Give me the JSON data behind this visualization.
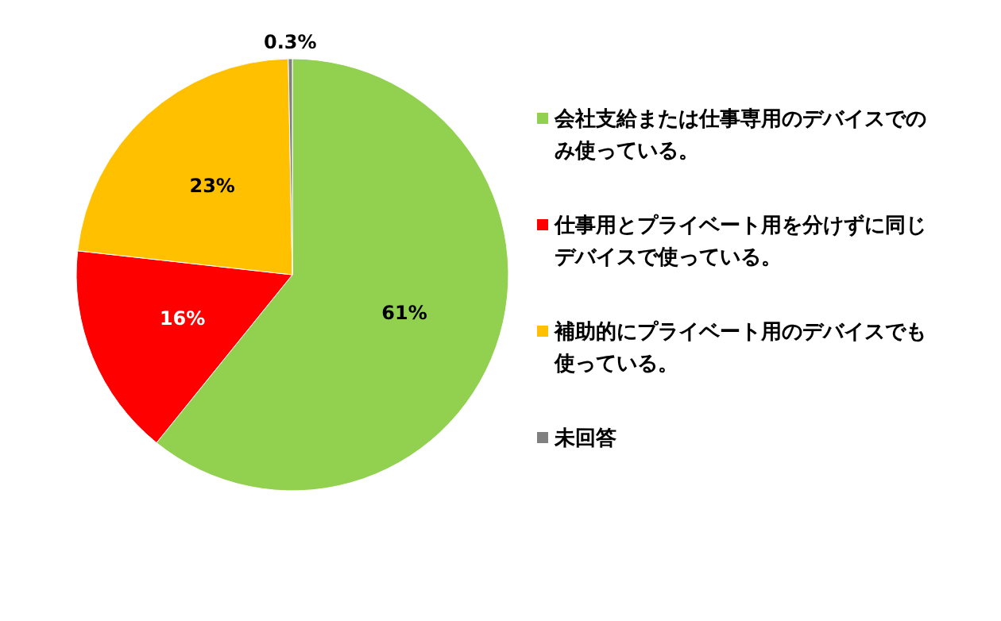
{
  "chart_data": {
    "type": "pie",
    "categories": [
      "会社支給または仕事専用のデバイスでのみ使っている。",
      "仕事用とプライベート用を分けずに同じデバイスで使っている。",
      "補助的にプライベート用のデバイスでも使っている。",
      "未回答"
    ],
    "values": [
      61,
      16,
      23,
      0.3
    ],
    "colors": [
      "#92d050",
      "#ff0000",
      "#ffc000",
      "#808080"
    ],
    "value_labels": [
      "61%",
      "16%",
      "23%",
      "0.3%"
    ],
    "legend": "right"
  }
}
